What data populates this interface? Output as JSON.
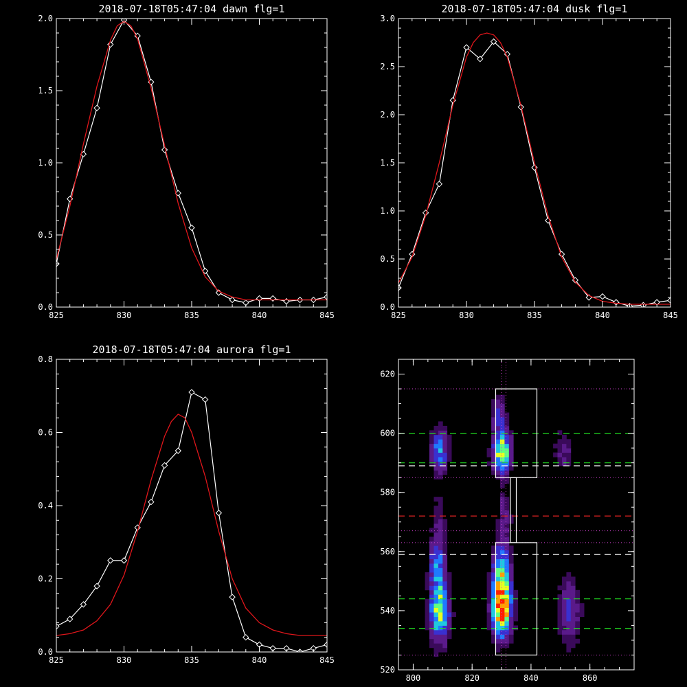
{
  "colors": {
    "background": "#000000",
    "data_line": "#ffffff",
    "fit_line": "#e0161b",
    "dash_green": "#22dd22",
    "dash_red": "#dd2222",
    "dash_white": "#ffffff",
    "dotted_magenta": "#d040d0"
  },
  "chart_data": [
    {
      "type": "line",
      "title": "2018-07-18T05:47:04 dawn flg=1",
      "xlim": [
        825,
        845
      ],
      "ylim": [
        0,
        2.0
      ],
      "x_ticks": [
        "825",
        "830",
        "835",
        "840",
        "845"
      ],
      "y_ticks": [
        "0.0",
        "0.5",
        "1.0",
        "1.5",
        "2.0"
      ],
      "series": [
        {
          "role": "data",
          "marker": "diamond",
          "x": [
            825,
            826,
            827,
            828,
            829,
            830,
            831,
            832,
            833,
            834,
            835,
            836,
            837,
            838,
            839,
            840,
            841,
            842,
            843,
            844,
            845
          ],
          "y": [
            0.3,
            0.75,
            1.06,
            1.38,
            1.82,
            1.99,
            1.88,
            1.56,
            1.09,
            0.79,
            0.55,
            0.25,
            0.1,
            0.05,
            0.03,
            0.06,
            0.06,
            0.04,
            0.05,
            0.05,
            0.07
          ]
        },
        {
          "role": "fit",
          "x": [
            825,
            826,
            827,
            828,
            829,
            829.5,
            830,
            830.5,
            831,
            832,
            833,
            834,
            835,
            836,
            837,
            838,
            839,
            840,
            841,
            842,
            843,
            844,
            845
          ],
          "y": [
            0.33,
            0.7,
            1.13,
            1.53,
            1.85,
            1.95,
            1.98,
            1.95,
            1.86,
            1.52,
            1.12,
            0.72,
            0.41,
            0.21,
            0.11,
            0.07,
            0.05,
            0.05,
            0.05,
            0.05,
            0.05,
            0.05,
            0.05
          ]
        }
      ]
    },
    {
      "type": "line",
      "title": "2018-07-18T05:47:04 dusk flg=1",
      "xlim": [
        825,
        845
      ],
      "ylim": [
        0,
        3.0
      ],
      "x_ticks": [
        "825",
        "830",
        "835",
        "840",
        "845"
      ],
      "y_ticks": [
        "0.0",
        "0.5",
        "1.0",
        "1.5",
        "2.0",
        "2.5",
        "3.0"
      ],
      "series": [
        {
          "role": "data",
          "marker": "diamond",
          "x": [
            825,
            826,
            827,
            828,
            829,
            830,
            831,
            832,
            833,
            834,
            835,
            836,
            837,
            838,
            839,
            840,
            841,
            842,
            843,
            844,
            845
          ],
          "y": [
            0.2,
            0.55,
            0.98,
            1.28,
            2.15,
            2.7,
            2.58,
            2.76,
            2.63,
            2.08,
            1.45,
            0.9,
            0.55,
            0.28,
            0.1,
            0.11,
            0.05,
            0.01,
            0.02,
            0.05,
            0.07
          ]
        },
        {
          "role": "fit",
          "x": [
            825,
            826,
            827,
            828,
            829,
            830,
            830.5,
            831,
            831.5,
            832,
            832.5,
            833,
            834,
            835,
            836,
            837,
            838,
            839,
            840,
            841,
            842,
            843,
            844,
            845
          ],
          "y": [
            0.25,
            0.52,
            0.95,
            1.5,
            2.1,
            2.6,
            2.75,
            2.83,
            2.85,
            2.83,
            2.75,
            2.6,
            2.1,
            1.5,
            0.95,
            0.52,
            0.26,
            0.12,
            0.06,
            0.04,
            0.03,
            0.03,
            0.03,
            0.03
          ]
        }
      ]
    },
    {
      "type": "line",
      "title": "2018-07-18T05:47:04 aurora flg=1",
      "xlim": [
        825,
        845
      ],
      "ylim": [
        0,
        0.8
      ],
      "x_ticks": [
        "825",
        "830",
        "835",
        "840",
        "845"
      ],
      "y_ticks": [
        "0.0",
        "0.2",
        "0.4",
        "0.6",
        "0.8"
      ],
      "series": [
        {
          "role": "data",
          "marker": "diamond",
          "x": [
            825,
            826,
            827,
            828,
            829,
            830,
            831,
            832,
            833,
            834,
            835,
            836,
            837,
            838,
            839,
            840,
            841,
            842,
            843,
            844,
            845
          ],
          "y": [
            0.07,
            0.09,
            0.13,
            0.18,
            0.25,
            0.25,
            0.34,
            0.41,
            0.51,
            0.55,
            0.71,
            0.69,
            0.38,
            0.15,
            0.04,
            0.02,
            0.01,
            0.01,
            0.0,
            0.01,
            0.02
          ]
        },
        {
          "role": "fit",
          "x": [
            825,
            826,
            827,
            828,
            829,
            830,
            831,
            832,
            833,
            833.5,
            834,
            834.5,
            835,
            836,
            837,
            838,
            839,
            840,
            841,
            842,
            843,
            844,
            845
          ],
          "y": [
            0.045,
            0.05,
            0.06,
            0.085,
            0.13,
            0.21,
            0.33,
            0.47,
            0.59,
            0.63,
            0.65,
            0.64,
            0.6,
            0.48,
            0.33,
            0.2,
            0.12,
            0.08,
            0.06,
            0.05,
            0.045,
            0.045,
            0.045
          ]
        }
      ]
    },
    {
      "type": "heatmap",
      "xlim": [
        795,
        875
      ],
      "ylim": [
        520,
        625
      ],
      "x_ticks": [
        "800",
        "820",
        "840",
        "860"
      ],
      "y_ticks": [
        "520",
        "540",
        "560",
        "580",
        "600",
        "620"
      ],
      "colormap": [
        "#000000",
        "#3a0a5a",
        "#5a1a8a",
        "#3a30d0",
        "#1f7aff",
        "#20c8e0",
        "#60ff80",
        "#e8ff20",
        "#ffa000",
        "#ff2000"
      ],
      "blobs": [
        {
          "x": 809,
          "y": 540,
          "sx": 2.2,
          "sy": 7,
          "amp": 0.68
        },
        {
          "x": 808,
          "y": 556,
          "sx": 1.8,
          "sy": 7,
          "amp": 0.38
        },
        {
          "x": 809,
          "y": 594,
          "sx": 2.0,
          "sy": 5,
          "amp": 0.45
        },
        {
          "x": 830,
          "y": 540,
          "sx": 2.2,
          "sy": 6,
          "amp": 0.95
        },
        {
          "x": 830,
          "y": 552,
          "sx": 2.0,
          "sy": 7,
          "amp": 0.6
        },
        {
          "x": 830,
          "y": 594,
          "sx": 2.0,
          "sy": 5,
          "amp": 0.78
        },
        {
          "x": 829,
          "y": 607,
          "sx": 1.6,
          "sy": 4,
          "amp": 0.28
        },
        {
          "x": 853,
          "y": 540,
          "sx": 2.5,
          "sy": 8,
          "amp": 0.28
        },
        {
          "x": 851,
          "y": 594,
          "sx": 2.2,
          "sy": 5,
          "amp": 0.18
        },
        {
          "x": 831,
          "y": 572,
          "sx": 1.5,
          "sy": 6,
          "amp": 0.2
        },
        {
          "x": 809,
          "y": 572,
          "sx": 1.5,
          "sy": 6,
          "amp": 0.12
        }
      ],
      "rectangles": [
        {
          "x0": 828,
          "x1": 842,
          "y0": 585,
          "y1": 615
        },
        {
          "x0": 828,
          "x1": 842,
          "y0": 525,
          "y1": 563
        },
        {
          "x0": 833,
          "x1": 835,
          "y0": 563,
          "y1": 585
        }
      ],
      "dashed_lines": [
        {
          "y": 600,
          "color": "#22dd22"
        },
        {
          "y": 590,
          "color": "#22dd22"
        },
        {
          "y": 589,
          "color": "#ffffff"
        },
        {
          "y": 572,
          "color": "#dd2222"
        },
        {
          "y": 559,
          "color": "#ffffff"
        },
        {
          "y": 544,
          "color": "#22dd22"
        },
        {
          "y": 534,
          "color": "#22dd22"
        }
      ],
      "dotted_lines_h": [
        {
          "y": 615,
          "color": "#d040d0"
        },
        {
          "y": 585,
          "color": "#d040d0"
        },
        {
          "y": 567,
          "color": "#d040d0"
        },
        {
          "y": 563,
          "color": "#d040d0"
        },
        {
          "y": 525,
          "color": "#d040d0"
        }
      ],
      "dotted_lines_v": [
        {
          "x": 830,
          "color": "#d040d0"
        },
        {
          "x": 831.5,
          "color": "#d040d0"
        }
      ]
    }
  ]
}
